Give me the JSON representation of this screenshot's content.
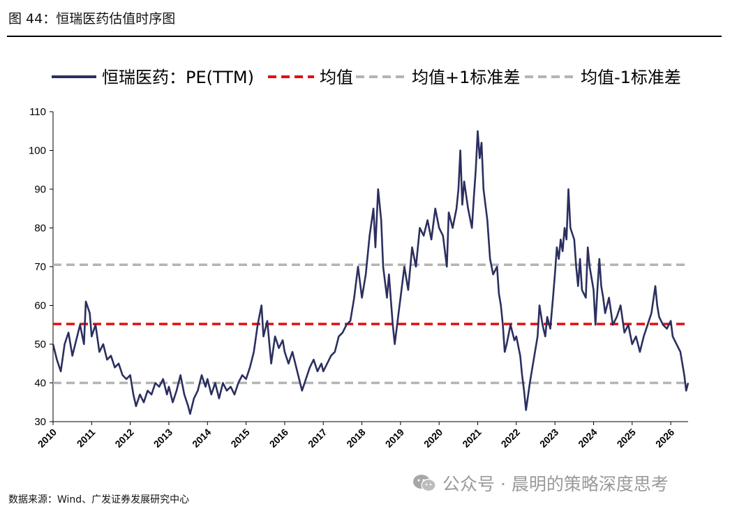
{
  "figure": {
    "title": "图 44：恒瑞医药估值时序图",
    "source": "数据来源：Wind、广发证券发展研究中心",
    "watermark": "公众号 · 晨明的策略深度思考",
    "watermark_icon": "wechat-icon"
  },
  "chart_data": {
    "type": "line",
    "title": "",
    "xlabel": "",
    "ylabel": "",
    "ylim": [
      30,
      110
    ],
    "yticks": [
      30,
      40,
      50,
      60,
      70,
      80,
      90,
      100,
      110
    ],
    "xlim": [
      2010,
      2026.45
    ],
    "xticks": [
      "2010",
      "2011",
      "2012",
      "2013",
      "2014",
      "2015",
      "2016",
      "2017",
      "2018",
      "2019",
      "2020",
      "2021",
      "2022",
      "2023",
      "2024",
      "2025",
      "2026"
    ],
    "grid": false,
    "legend_position": "top",
    "series": [
      {
        "name": "恒瑞医药：PE(TTM)",
        "color": "#2b2f5f",
        "style": "solid",
        "points": [
          [
            2010.0,
            50
          ],
          [
            2010.1,
            46
          ],
          [
            2010.2,
            43
          ],
          [
            2010.3,
            50
          ],
          [
            2010.4,
            53
          ],
          [
            2010.5,
            47
          ],
          [
            2010.6,
            51
          ],
          [
            2010.7,
            55
          ],
          [
            2010.8,
            50
          ],
          [
            2010.85,
            61
          ],
          [
            2010.95,
            58
          ],
          [
            2011.0,
            52
          ],
          [
            2011.1,
            55
          ],
          [
            2011.2,
            48
          ],
          [
            2011.3,
            50
          ],
          [
            2011.4,
            46
          ],
          [
            2011.5,
            47
          ],
          [
            2011.6,
            44
          ],
          [
            2011.7,
            45
          ],
          [
            2011.8,
            42
          ],
          [
            2011.9,
            41
          ],
          [
            2012.0,
            42
          ],
          [
            2012.08,
            37
          ],
          [
            2012.15,
            34
          ],
          [
            2012.25,
            37
          ],
          [
            2012.35,
            35
          ],
          [
            2012.45,
            38
          ],
          [
            2012.55,
            37
          ],
          [
            2012.65,
            40
          ],
          [
            2012.75,
            39
          ],
          [
            2012.85,
            41
          ],
          [
            2012.95,
            37
          ],
          [
            2013.0,
            39
          ],
          [
            2013.1,
            35
          ],
          [
            2013.2,
            38
          ],
          [
            2013.3,
            42
          ],
          [
            2013.4,
            37
          ],
          [
            2013.5,
            34
          ],
          [
            2013.55,
            32
          ],
          [
            2013.65,
            36
          ],
          [
            2013.75,
            38
          ],
          [
            2013.85,
            42
          ],
          [
            2013.95,
            39
          ],
          [
            2014.0,
            41
          ],
          [
            2014.1,
            37
          ],
          [
            2014.2,
            40
          ],
          [
            2014.3,
            36
          ],
          [
            2014.4,
            40
          ],
          [
            2014.5,
            38
          ],
          [
            2014.6,
            39
          ],
          [
            2014.7,
            37
          ],
          [
            2014.8,
            40
          ],
          [
            2014.9,
            42
          ],
          [
            2015.0,
            41
          ],
          [
            2015.1,
            44
          ],
          [
            2015.2,
            48
          ],
          [
            2015.3,
            55
          ],
          [
            2015.4,
            60
          ],
          [
            2015.45,
            52
          ],
          [
            2015.55,
            56
          ],
          [
            2015.65,
            45
          ],
          [
            2015.75,
            52
          ],
          [
            2015.85,
            49
          ],
          [
            2015.95,
            51
          ],
          [
            2016.0,
            48
          ],
          [
            2016.1,
            45
          ],
          [
            2016.2,
            48
          ],
          [
            2016.3,
            44
          ],
          [
            2016.4,
            40
          ],
          [
            2016.45,
            38
          ],
          [
            2016.55,
            41
          ],
          [
            2016.65,
            44
          ],
          [
            2016.75,
            46
          ],
          [
            2016.85,
            43
          ],
          [
            2016.95,
            45
          ],
          [
            2017.0,
            43
          ],
          [
            2017.1,
            45
          ],
          [
            2017.2,
            47
          ],
          [
            2017.3,
            48
          ],
          [
            2017.4,
            52
          ],
          [
            2017.5,
            53
          ],
          [
            2017.6,
            55
          ],
          [
            2017.7,
            56
          ],
          [
            2017.8,
            62
          ],
          [
            2017.9,
            70
          ],
          [
            2018.0,
            62
          ],
          [
            2018.1,
            68
          ],
          [
            2018.2,
            78
          ],
          [
            2018.3,
            85
          ],
          [
            2018.35,
            75
          ],
          [
            2018.42,
            90
          ],
          [
            2018.5,
            82
          ],
          [
            2018.55,
            70
          ],
          [
            2018.65,
            62
          ],
          [
            2018.7,
            68
          ],
          [
            2018.8,
            55
          ],
          [
            2018.85,
            50
          ],
          [
            2018.95,
            58
          ],
          [
            2019.0,
            62
          ],
          [
            2019.1,
            70
          ],
          [
            2019.2,
            64
          ],
          [
            2019.3,
            75
          ],
          [
            2019.4,
            70
          ],
          [
            2019.5,
            80
          ],
          [
            2019.6,
            78
          ],
          [
            2019.7,
            82
          ],
          [
            2019.8,
            77
          ],
          [
            2019.9,
            85
          ],
          [
            2020.0,
            80
          ],
          [
            2020.1,
            78
          ],
          [
            2020.2,
            70
          ],
          [
            2020.25,
            84
          ],
          [
            2020.35,
            80
          ],
          [
            2020.45,
            85
          ],
          [
            2020.5,
            90
          ],
          [
            2020.55,
            100
          ],
          [
            2020.6,
            86
          ],
          [
            2020.65,
            92
          ],
          [
            2020.75,
            85
          ],
          [
            2020.85,
            80
          ],
          [
            2020.9,
            88
          ],
          [
            2020.95,
            95
          ],
          [
            2021.0,
            105
          ],
          [
            2021.05,
            98
          ],
          [
            2021.1,
            102
          ],
          [
            2021.15,
            90
          ],
          [
            2021.25,
            82
          ],
          [
            2021.32,
            72
          ],
          [
            2021.4,
            68
          ],
          [
            2021.5,
            70
          ],
          [
            2021.55,
            63
          ],
          [
            2021.6,
            60
          ],
          [
            2021.65,
            55
          ],
          [
            2021.7,
            48
          ],
          [
            2021.75,
            50
          ],
          [
            2021.85,
            55
          ],
          [
            2021.95,
            51
          ],
          [
            2022.0,
            52
          ],
          [
            2022.1,
            47
          ],
          [
            2022.15,
            42
          ],
          [
            2022.2,
            38
          ],
          [
            2022.25,
            33
          ],
          [
            2022.35,
            40
          ],
          [
            2022.45,
            46
          ],
          [
            2022.55,
            52
          ],
          [
            2022.6,
            60
          ],
          [
            2022.68,
            55
          ],
          [
            2022.75,
            52
          ],
          [
            2022.8,
            57
          ],
          [
            2022.88,
            54
          ],
          [
            2022.95,
            62
          ],
          [
            2023.0,
            68
          ],
          [
            2023.05,
            75
          ],
          [
            2023.1,
            72
          ],
          [
            2023.15,
            77
          ],
          [
            2023.2,
            74
          ],
          [
            2023.25,
            80
          ],
          [
            2023.3,
            77
          ],
          [
            2023.35,
            90
          ],
          [
            2023.4,
            80
          ],
          [
            2023.5,
            77
          ],
          [
            2023.55,
            70
          ],
          [
            2023.6,
            65
          ],
          [
            2023.65,
            72
          ],
          [
            2023.7,
            64
          ],
          [
            2023.8,
            62
          ],
          [
            2023.85,
            75
          ],
          [
            2023.9,
            70
          ],
          [
            2024.0,
            64
          ],
          [
            2024.05,
            55
          ],
          [
            2024.1,
            64
          ],
          [
            2024.15,
            72
          ],
          [
            2024.2,
            65
          ],
          [
            2024.25,
            62
          ],
          [
            2024.3,
            58
          ],
          [
            2024.4,
            62
          ],
          [
            2024.5,
            55
          ],
          [
            2024.6,
            57
          ],
          [
            2024.7,
            60
          ],
          [
            2024.8,
            53
          ],
          [
            2024.9,
            55
          ],
          [
            2025.0,
            50
          ],
          [
            2025.1,
            52
          ],
          [
            2025.2,
            48
          ],
          [
            2025.3,
            52
          ],
          [
            2025.4,
            55
          ],
          [
            2025.5,
            58
          ],
          [
            2025.6,
            65
          ],
          [
            2025.65,
            60
          ],
          [
            2025.7,
            57
          ],
          [
            2025.8,
            55
          ],
          [
            2025.9,
            54
          ],
          [
            2026.0,
            56
          ],
          [
            2026.05,
            52
          ],
          [
            2026.15,
            50
          ],
          [
            2026.25,
            48
          ],
          [
            2026.3,
            45
          ],
          [
            2026.35,
            42
          ],
          [
            2026.4,
            38
          ],
          [
            2026.45,
            40
          ]
        ]
      },
      {
        "name": "均值",
        "color": "#e01010",
        "style": "dashed",
        "value": 55.2
      },
      {
        "name": "均值+1标准差",
        "color": "#b4b4b4",
        "style": "dashed",
        "value": 70.5
      },
      {
        "name": "均值-1标准差",
        "color": "#b4b4b4",
        "style": "dashed",
        "value": 40.0
      }
    ]
  }
}
